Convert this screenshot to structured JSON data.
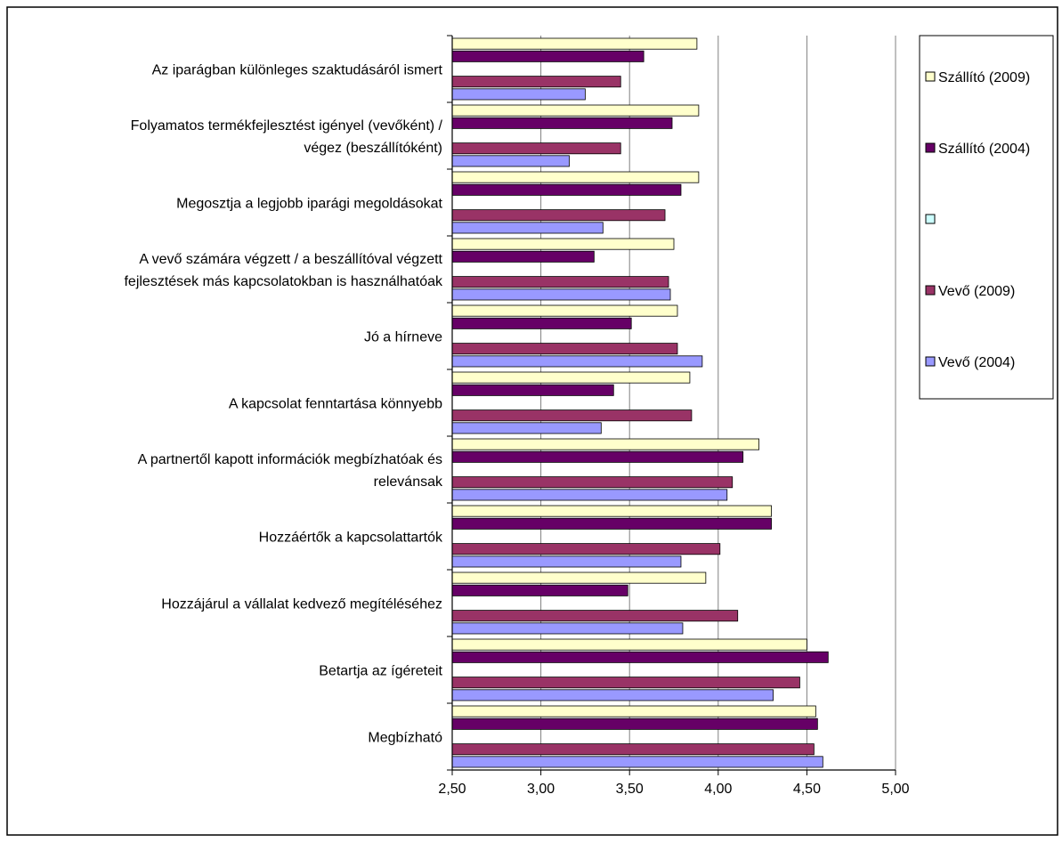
{
  "chart_data": {
    "type": "bar",
    "orientation": "horizontal",
    "categories": [
      "Az iparágban különleges szaktudásáról ismert",
      "Folyamatos termékfejlesztést igényel (vevőként) /\nvégez (beszállítóként)",
      "Megosztja a legjobb iparági megoldásokat",
      "A vevő számára végzett / a beszállítóval végzett\nfejlesztések más kapcsolatokban is használhatóak",
      "Jó a hírneve",
      "A kapcsolat fenntartása könnyebb",
      "A partnertől kapott információk megbízhatóak és\nrelevánsak",
      "Hozzáértők a kapcsolattartók",
      "Hozzájárul a vállalat kedvező megítéléséhez",
      "Betartja az ígéreteit",
      "Megbízható"
    ],
    "series": [
      {
        "name": "Szállító (2009)",
        "color": "#ffffcc",
        "values": [
          3.88,
          3.89,
          3.89,
          3.75,
          3.77,
          3.84,
          4.23,
          4.3,
          3.93,
          4.5,
          4.55
        ]
      },
      {
        "name": "Szállító (2004)",
        "color": "#660066",
        "values": [
          3.58,
          3.74,
          3.79,
          3.3,
          3.51,
          3.41,
          4.14,
          4.3,
          3.49,
          4.62,
          4.56
        ]
      },
      {
        "color": "#ccffff",
        "values": [
          null,
          null,
          null,
          null,
          null,
          null,
          null,
          null,
          null,
          null,
          null
        ]
      },
      {
        "name": "Vevő (2009)",
        "color": "#993366",
        "values": [
          3.45,
          3.45,
          3.7,
          3.72,
          3.77,
          3.85,
          4.08,
          4.01,
          4.11,
          4.46,
          4.54
        ]
      },
      {
        "name": "Vevő (2004)",
        "color": "#9999ff",
        "values": [
          3.25,
          3.16,
          3.35,
          3.73,
          3.91,
          3.34,
          4.05,
          3.79,
          3.8,
          4.31,
          4.59
        ]
      }
    ],
    "xlim": [
      2.5,
      5.0
    ],
    "xticks": [
      {
        "value": 2.5,
        "label": "2,50"
      },
      {
        "value": 3.0,
        "label": "3,00"
      },
      {
        "value": 3.5,
        "label": "3,50"
      },
      {
        "value": 4.0,
        "label": "4,00"
      },
      {
        "value": 4.5,
        "label": "4,50"
      },
      {
        "value": 5.0,
        "label": "5,00"
      }
    ],
    "grid": true,
    "legend": "right"
  }
}
